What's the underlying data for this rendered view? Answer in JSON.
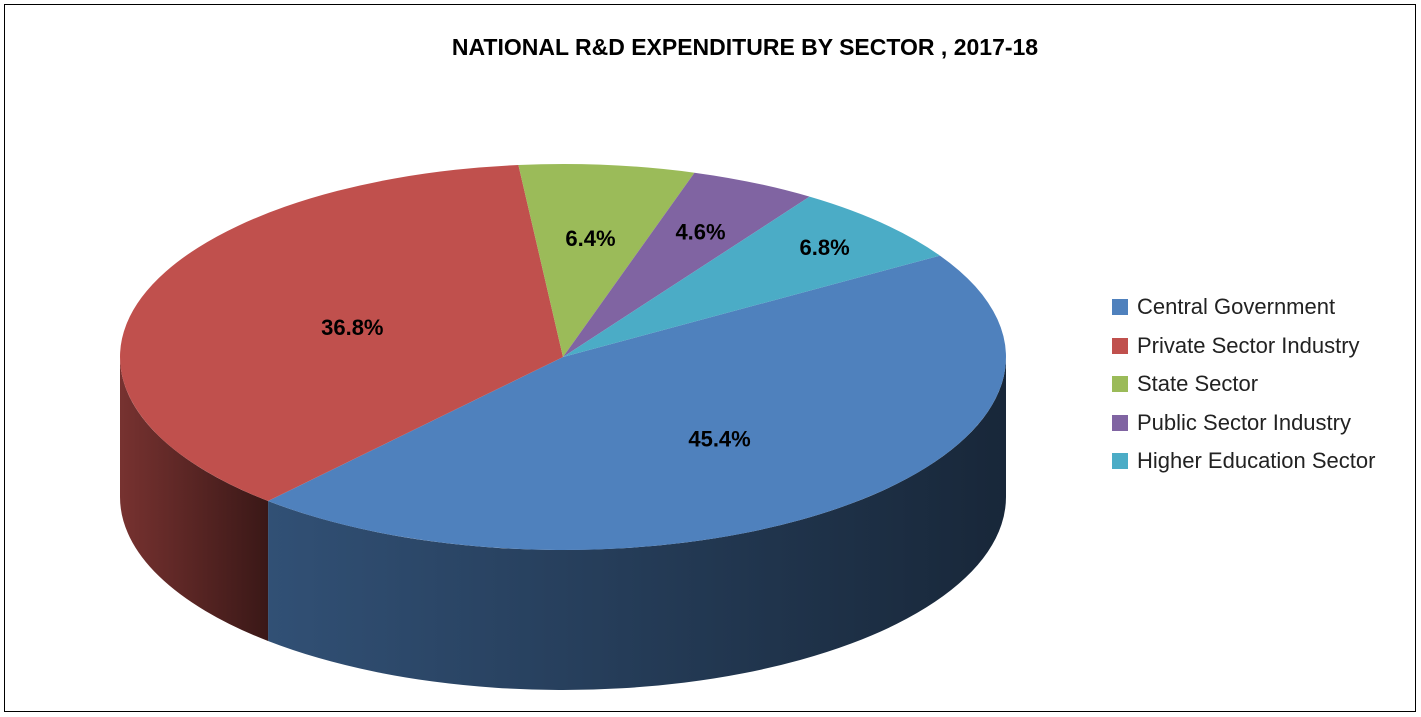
{
  "chart_data": {
    "type": "pie",
    "title": "NATIONAL R&D EXPENDITURE BY SECTOR , 2017-18",
    "legend_position": "right",
    "three_d": true,
    "slices": [
      {
        "label": "Central Government",
        "value": 45.4,
        "display": "45.4%",
        "color": "#4F81BD"
      },
      {
        "label": "Private Sector Industry",
        "value": 36.8,
        "display": "36.8%",
        "color": "#C0504D"
      },
      {
        "label": "State Sector",
        "value": 6.4,
        "display": "6.4%",
        "color": "#9BBB59"
      },
      {
        "label": "Public Sector Industry",
        "value": 4.6,
        "display": "4.6%",
        "color": "#8064A2"
      },
      {
        "label": "Higher Education Sector",
        "value": 6.8,
        "display": "6.8%",
        "color": "#4BACC6"
      }
    ]
  }
}
